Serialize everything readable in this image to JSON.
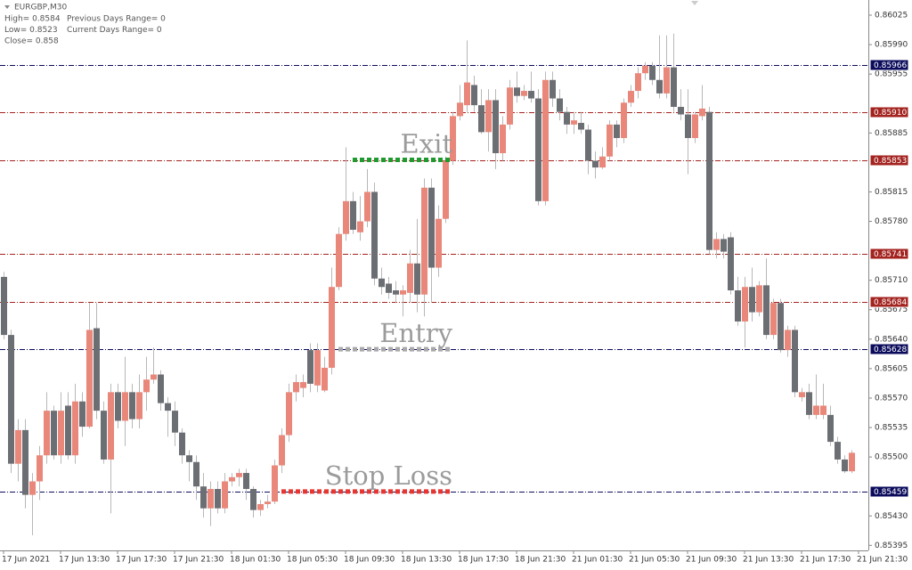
{
  "chart_data": {
    "type": "candlestick",
    "info": {
      "symbol": "EURGBP,M30",
      "lines": [
        "High= 0.8584",
        "Low= 0.8523",
        "Close= 0.858"
      ],
      "lines2": [
        "Previous Days Range= 0",
        "Current Days Range= 0"
      ]
    },
    "bull_color": "#e8877a",
    "bear_color": "#6b6e73",
    "wick_color": "#b8b8b8",
    "open": [
      0.85714,
      0.85645,
      0.85492,
      0.85532,
      0.85455,
      0.85471,
      0.85502,
      0.85555,
      0.85502,
      0.85561,
      0.85502,
      0.85566,
      0.85536,
      0.85653,
      0.85555,
      0.85497,
      0.85577,
      0.85543,
      0.85577,
      0.85545,
      0.85577,
      0.85592,
      0.85598,
      0.85564,
      0.85555,
      0.85529,
      0.85502,
      0.85494,
      0.85465,
      0.85439,
      0.85462,
      0.85439,
      0.85471,
      0.85476,
      0.85481,
      0.85462,
      0.85437,
      0.85444,
      0.85447,
      0.8549,
      0.85526,
      0.85577,
      0.85582,
      0.85627,
      0.85585,
      0.85579,
      0.85606,
      0.85702,
      0.85765,
      0.85804,
      0.85767,
      0.8578,
      0.85815,
      0.85712,
      0.85706,
      0.85698,
      0.85693,
      0.85695,
      0.8573,
      0.85693,
      0.8582,
      0.85725,
      0.85783,
      0.85852,
      0.85905,
      0.85918,
      0.85942,
      0.85918,
      0.85886,
      0.85924,
      0.85861,
      0.85895,
      0.85939,
      0.85929,
      0.85935,
      0.85926,
      0.85804,
      0.85948,
      0.85926,
      0.8591,
      0.85895,
      0.85897,
      0.85889,
      0.85852,
      0.85844,
      0.85857,
      0.85895,
      0.85879,
      0.85921,
      0.85935,
      0.85956,
      0.85965,
      0.85948,
      0.85932,
      0.85963,
      0.85916,
      0.85907,
      0.85879,
      0.85905,
      0.8591,
      0.85746,
      0.85759,
      0.85761,
      0.85698,
      0.85661,
      0.85702,
      0.85672,
      0.85704,
      0.85645,
      0.85683,
      0.85627,
      0.85651,
      0.85571,
      0.85577,
      0.8555,
      0.8555,
      0.8555,
      0.85518,
      0.85497,
      0.85483
    ],
    "high": [
      0.8572,
      0.85651,
      0.85545,
      0.85545,
      0.85481,
      0.85513,
      0.85577,
      0.85561,
      0.85577,
      0.85577,
      0.85587,
      0.85577,
      0.85683,
      0.85683,
      0.85566,
      0.85587,
      0.85587,
      0.85619,
      0.85587,
      0.85598,
      0.85619,
      0.8563,
      0.85603,
      0.85571,
      0.85566,
      0.85534,
      0.85508,
      0.85502,
      0.85481,
      0.85471,
      0.85471,
      0.85481,
      0.85481,
      0.85486,
      0.85486,
      0.85465,
      0.85449,
      0.85455,
      0.85497,
      0.85534,
      0.85587,
      0.85598,
      0.85598,
      0.85635,
      0.85635,
      0.85619,
      0.85725,
      0.85773,
      0.85868,
      0.85815,
      0.8581,
      0.85842,
      0.85826,
      0.85725,
      0.85714,
      0.85709,
      0.85704,
      0.85746,
      0.85783,
      0.85831,
      0.85831,
      0.85799,
      0.85857,
      0.8591,
      0.85942,
      0.85995,
      0.85953,
      0.85937,
      0.85937,
      0.85937,
      0.85905,
      0.85948,
      0.85958,
      0.85942,
      0.85958,
      0.85937,
      0.85958,
      0.85958,
      0.85937,
      0.85916,
      0.8591,
      0.8591,
      0.85895,
      0.85863,
      0.85868,
      0.859,
      0.859,
      0.85926,
      0.85942,
      0.85963,
      0.85969,
      0.85969,
      0.86001,
      0.86001,
      0.86003,
      0.85937,
      0.85937,
      0.8591,
      0.85942,
      0.85916,
      0.85767,
      0.85765,
      0.85767,
      0.85714,
      0.85714,
      0.85725,
      0.85709,
      0.85736,
      0.85688,
      0.85688,
      0.85656,
      0.85656,
      0.85582,
      0.85587,
      0.85598,
      0.85587,
      0.85561,
      0.85524,
      0.85502,
      0.85508
    ],
    "low": [
      0.8564,
      0.85481,
      0.85471,
      0.85439,
      0.85407,
      0.85449,
      0.85492,
      0.85497,
      0.85492,
      0.85497,
      0.85492,
      0.85524,
      0.85534,
      0.85545,
      0.85492,
      0.85433,
      0.85534,
      0.85513,
      0.85534,
      0.85534,
      0.85555,
      0.85587,
      0.85555,
      0.85524,
      0.85513,
      0.85492,
      0.85471,
      0.85449,
      0.85428,
      0.85418,
      0.85433,
      0.85433,
      0.85465,
      0.85465,
      0.85449,
      0.85428,
      0.8543,
      0.85439,
      0.85444,
      0.85481,
      0.85518,
      0.85566,
      0.85571,
      0.85577,
      0.85577,
      0.85577,
      0.85598,
      0.85698,
      0.85757,
      0.85765,
      0.85757,
      0.85773,
      0.85704,
      0.85693,
      0.85688,
      0.85683,
      0.85667,
      0.85683,
      0.85672,
      0.85667,
      0.85683,
      0.85714,
      0.85778,
      0.85847,
      0.859,
      0.8591,
      0.8591,
      0.85884,
      0.85863,
      0.85842,
      0.85852,
      0.85889,
      0.85921,
      0.85924,
      0.85921,
      0.85799,
      0.85799,
      0.85916,
      0.859,
      0.85884,
      0.85884,
      0.85884,
      0.85836,
      0.85831,
      0.85842,
      0.85852,
      0.85868,
      0.85873,
      0.85916,
      0.85926,
      0.85948,
      0.85942,
      0.85926,
      0.85926,
      0.8591,
      0.859,
      0.85836,
      0.85873,
      0.859,
      0.85741,
      0.85736,
      0.85736,
      0.85693,
      0.85656,
      0.8563,
      0.85661,
      0.85667,
      0.8564,
      0.8564,
      0.85624,
      0.85619,
      0.85571,
      0.85566,
      0.85545,
      0.85545,
      0.85545,
      0.85513,
      0.85492,
      0.85481,
      0.85481
    ],
    "close": [
      0.85645,
      0.85492,
      0.85532,
      0.85455,
      0.85471,
      0.85502,
      0.85555,
      0.85502,
      0.85555,
      0.85502,
      0.85566,
      0.85536,
      0.85651,
      0.85555,
      0.85497,
      0.85577,
      0.85543,
      0.85577,
      0.85545,
      0.85577,
      0.85592,
      0.85598,
      0.85564,
      0.85555,
      0.85529,
      0.85502,
      0.85494,
      0.85465,
      0.85439,
      0.85462,
      0.85439,
      0.85471,
      0.85476,
      0.85481,
      0.85462,
      0.85437,
      0.85444,
      0.85447,
      0.8549,
      0.85526,
      0.85577,
      0.85589,
      0.85589,
      0.85587,
      0.85627,
      0.85606,
      0.85702,
      0.85765,
      0.85804,
      0.8577,
      0.8578,
      0.85815,
      0.85712,
      0.85702,
      0.85695,
      0.85693,
      0.85698,
      0.8573,
      0.85693,
      0.8582,
      0.85725,
      0.85783,
      0.85852,
      0.85905,
      0.85921,
      0.85945,
      0.85918,
      0.85886,
      0.85924,
      0.85861,
      0.85895,
      0.85939,
      0.85929,
      0.85935,
      0.85926,
      0.85804,
      0.85948,
      0.85926,
      0.8591,
      0.85895,
      0.859,
      0.85889,
      0.85852,
      0.85844,
      0.85857,
      0.85895,
      0.85879,
      0.85921,
      0.85935,
      0.85956,
      0.85965,
      0.85948,
      0.85932,
      0.85963,
      0.85916,
      0.85907,
      0.85879,
      0.85907,
      0.85914,
      0.85746,
      0.85759,
      0.85744,
      0.85698,
      0.85661,
      0.85702,
      0.85672,
      0.85704,
      0.85645,
      0.85683,
      0.85627,
      0.85651,
      0.85577,
      0.85577,
      0.8555,
      0.85561,
      0.85561,
      0.85518,
      0.85497,
      0.85483,
      0.85505
    ],
    "xlim": [
      -0.5,
      121.375
    ],
    "xticks": [
      {
        "value": 0,
        "label": "17 Jun 2021"
      },
      {
        "value": 8,
        "label": "17 Jun 13:30"
      },
      {
        "value": 16,
        "label": "17 Jun 17:30"
      },
      {
        "value": 24,
        "label": "17 Jun 21:30"
      },
      {
        "value": 32,
        "label": "18 Jun 01:30"
      },
      {
        "value": 40,
        "label": "18 Jun 05:30"
      },
      {
        "value": 48,
        "label": "18 Jun 09:30"
      },
      {
        "value": 56,
        "label": "18 Jun 13:30"
      },
      {
        "value": 64,
        "label": "18 Jun 17:30"
      },
      {
        "value": 72,
        "label": "18 Jun 21:30"
      },
      {
        "value": 80,
        "label": "21 Jun 01:30"
      },
      {
        "value": 88,
        "label": "21 Jun 05:30"
      },
      {
        "value": 96,
        "label": "21 Jun 09:30"
      },
      {
        "value": 104,
        "label": "21 Jun 13:30"
      },
      {
        "value": 112,
        "label": "21 Jun 17:30"
      },
      {
        "value": 120,
        "label": "21 Jun 21:30"
      }
    ],
    "ylim": [
      0.85389,
      0.86043
    ],
    "yticks": [
      0.86025,
      {
        "value": 0.8599,
        "label": "0.85990"
      },
      0.85955,
      0.85885,
      0.85815,
      {
        "value": 0.8578,
        "label": "0.85780"
      },
      {
        "value": 0.8571,
        "label": "0.85710"
      },
      0.85675,
      {
        "value": 0.8564,
        "label": "0.85640"
      },
      0.85605,
      {
        "value": 0.8557,
        "label": "0.85570"
      },
      0.85535,
      {
        "value": 0.855,
        "label": "0.85500"
      },
      {
        "value": 0.8543,
        "label": "0.85430"
      },
      0.85395
    ],
    "levels": [
      {
        "value": 0.85966,
        "label": "0.85966",
        "color": "#0b0b5c"
      },
      {
        "value": 0.8591,
        "label": "0.85910",
        "color": "#a3231f"
      },
      {
        "value": 0.85853,
        "label": "0.85853",
        "color": "#a3231f"
      },
      {
        "value": 0.85741,
        "label": "0.85741",
        "color": "#a3231f"
      },
      {
        "value": 0.85684,
        "label": "0.85684",
        "color": "#a3231f"
      },
      {
        "value": 0.85628,
        "label": "0.85628",
        "color": "#0b0b5c"
      },
      {
        "value": 0.85459,
        "label": "0.85459",
        "color": "#0b0b5c"
      }
    ],
    "trades": [
      {
        "text": "Exit",
        "value": 0.85853,
        "from": 49,
        "to": 63,
        "color": "#1f9a2e"
      },
      {
        "text": "Entry",
        "value": 0.85628,
        "from": 47,
        "to": 63,
        "color": "#a8a8a8"
      },
      {
        "text": "Stop Loss",
        "value": 0.85459,
        "from": 39,
        "to": 63,
        "color": "#e8352f"
      }
    ]
  }
}
